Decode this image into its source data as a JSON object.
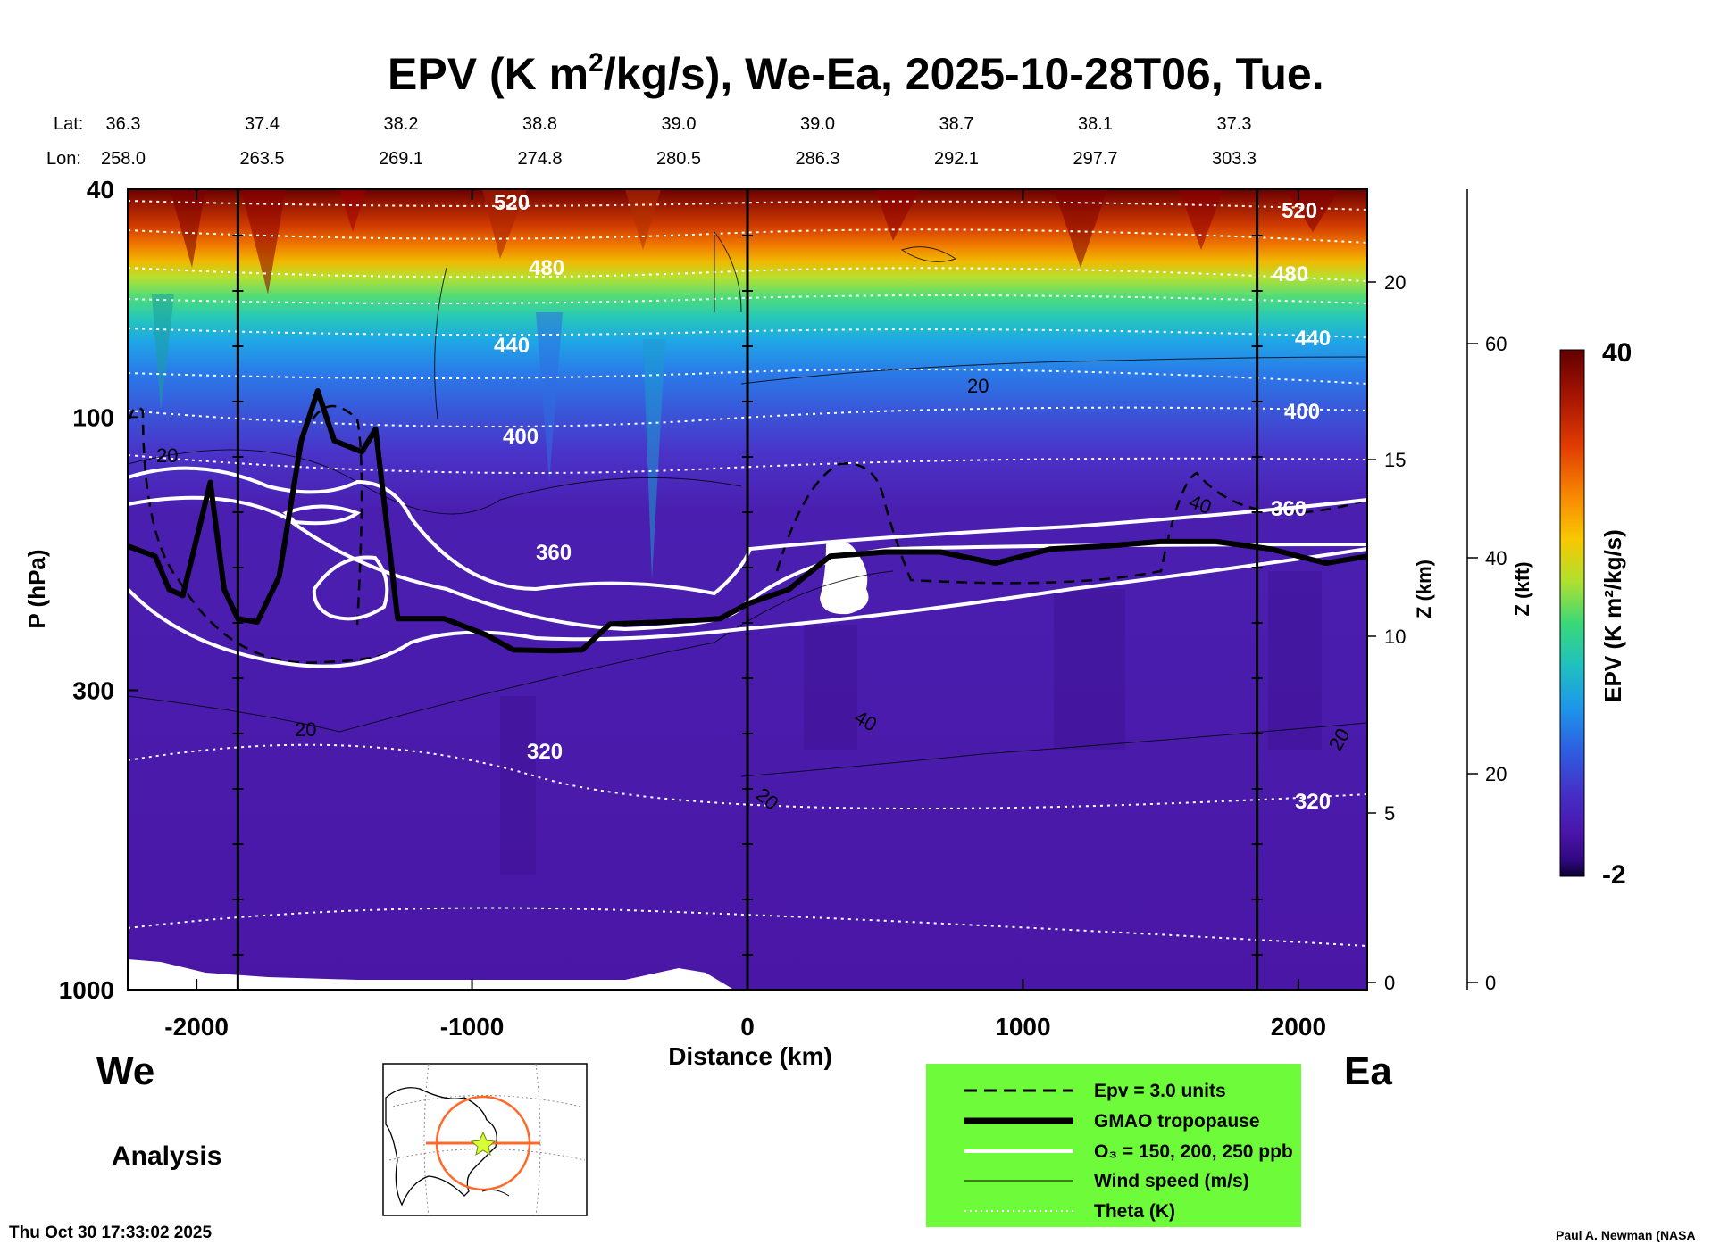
{
  "chart_data": {
    "type": "heatmap",
    "title_main": "EPV (K m",
    "title_sup": "2",
    "title_rest": "/kg/s), We-Ea, 2025-10-28T06, Tue.",
    "lat_label": "Lat:",
    "lon_label": "Lon:",
    "lats": [
      "36.3",
      "37.4",
      "38.2",
      "38.8",
      "39.0",
      "39.0",
      "38.7",
      "38.1",
      "37.3"
    ],
    "lons": [
      "258.0",
      "263.5",
      "269.1",
      "274.8",
      "280.5",
      "286.3",
      "292.1",
      "297.7",
      "303.3"
    ],
    "xlabel": "Distance (km)",
    "xlim": [
      -2250,
      2250
    ],
    "xticks": [
      "-2000",
      "-1000",
      "0",
      "1000",
      "2000"
    ],
    "xtick_values": [
      -2000,
      -1000,
      0,
      1000,
      2000
    ],
    "ylabel": "P (hPa)",
    "ylim": [
      1000,
      40
    ],
    "yticks": [
      "40",
      "100",
      "300",
      "1000"
    ],
    "ytick_values": [
      40,
      100,
      300,
      1000
    ],
    "z_km_label": "Z (km)",
    "z_km_ticks": [
      "20",
      "15",
      "10",
      "5",
      "0"
    ],
    "z_km_values": [
      20,
      15,
      10,
      5,
      0
    ],
    "z_kft_label": "Z (kft)",
    "z_kft_ticks": [
      "60",
      "40",
      "20",
      "0"
    ],
    "z_kft_values": [
      60,
      40,
      20,
      0
    ],
    "colorbar_label": "EPV (K m²/kg/s)",
    "colorbar_min": "-2",
    "colorbar_max": "40",
    "vertical_lines_km": [
      -1850,
      0,
      1850
    ],
    "theta_labels": [
      "520",
      "480",
      "440",
      "400",
      "360",
      "320",
      "520",
      "480",
      "440",
      "400",
      "360",
      "320"
    ],
    "wind_labels": [
      "20",
      "20",
      "20",
      "40",
      "20",
      "40",
      "20"
    ],
    "tropopause_p_hpa": [
      [
        -2250,
        168
      ],
      [
        -2150,
        175
      ],
      [
        -2100,
        200
      ],
      [
        -2050,
        205
      ],
      [
        -1950,
        130
      ],
      [
        -1900,
        200
      ],
      [
        -1850,
        225
      ],
      [
        -1780,
        228
      ],
      [
        -1700,
        190
      ],
      [
        -1620,
        110
      ],
      [
        -1560,
        90
      ],
      [
        -1500,
        110
      ],
      [
        -1400,
        115
      ],
      [
        -1350,
        105
      ],
      [
        -1270,
        225
      ],
      [
        -1100,
        225
      ],
      [
        -950,
        240
      ],
      [
        -850,
        255
      ],
      [
        -700,
        256
      ],
      [
        -600,
        255
      ],
      [
        -500,
        230
      ],
      [
        -300,
        228
      ],
      [
        -100,
        225
      ],
      [
        0,
        212
      ],
      [
        150,
        200
      ],
      [
        300,
        175
      ],
      [
        500,
        172
      ],
      [
        700,
        172
      ],
      [
        900,
        180
      ],
      [
        1100,
        170
      ],
      [
        1300,
        168
      ],
      [
        1500,
        165
      ],
      [
        1700,
        165
      ],
      [
        1900,
        170
      ],
      [
        2100,
        180
      ],
      [
        2250,
        175
      ]
    ],
    "left_label": "We",
    "right_label": "Ea",
    "analysis_label": "Analysis",
    "legend": [
      {
        "label": "Epv = 3.0 units",
        "style": "dashed"
      },
      {
        "label": "GMAO tropopause",
        "style": "thick"
      },
      {
        "label": "O₃ = 150, 200, 250 ppb",
        "style": "white"
      },
      {
        "label": "Wind speed (m/s)",
        "style": "thin"
      },
      {
        "label": "Theta (K)",
        "style": "dotted"
      }
    ]
  },
  "footer": {
    "timestamp": "Thu Oct 30 17:33:02 2025",
    "credit": "Paul A. Newman (NASA"
  },
  "colors": {
    "legend_bg": "#6efc3a",
    "locator_circle": "#ff6a2a",
    "locator_star": "#d8ff3a"
  }
}
